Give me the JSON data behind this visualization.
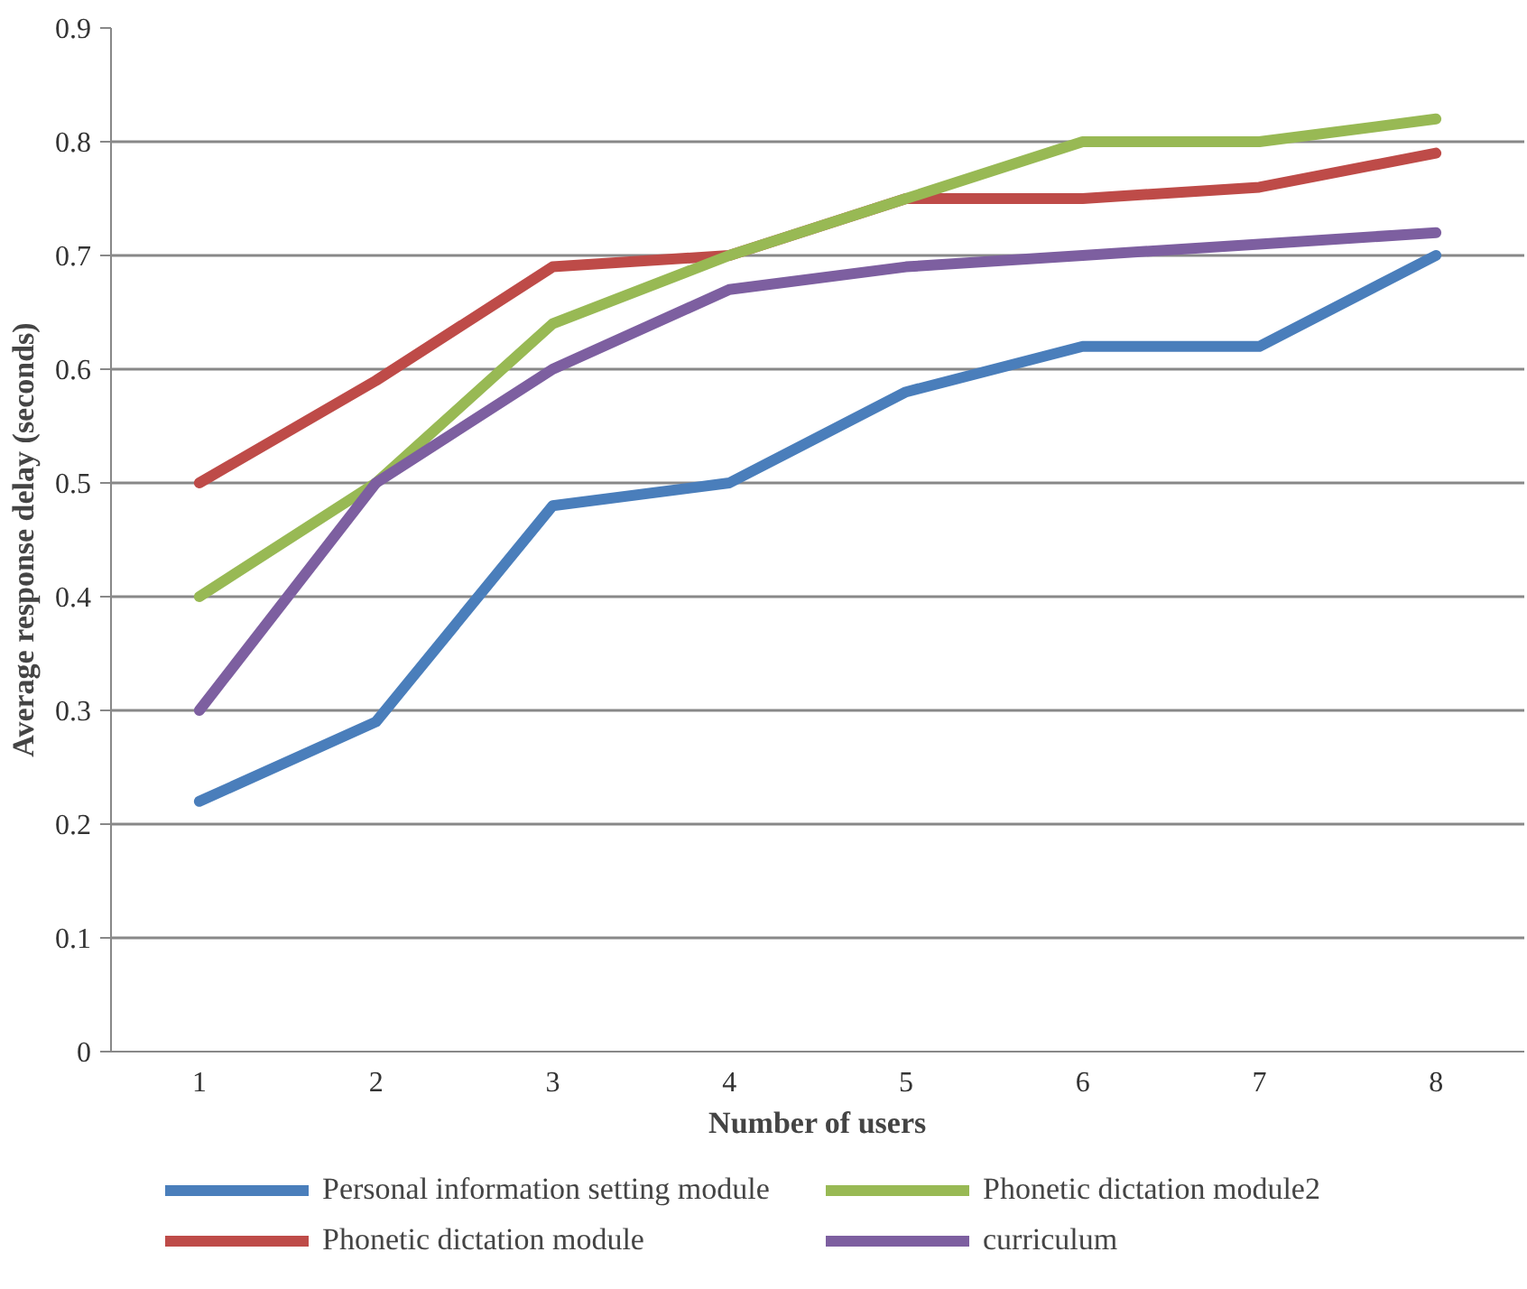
{
  "chart_data": {
    "type": "line",
    "xlabel": "Number of users",
    "ylabel": "Average response delay (seconds)",
    "categories": [
      "1",
      "2",
      "3",
      "4",
      "5",
      "6",
      "7",
      "8"
    ],
    "series": [
      {
        "name": "Personal information setting module",
        "color": "#4a7ebb",
        "values": [
          0.22,
          0.29,
          0.48,
          0.5,
          0.58,
          0.62,
          0.62,
          0.7
        ]
      },
      {
        "name": "Phonetic dictation module",
        "color": "#be4b48",
        "values": [
          0.5,
          0.59,
          0.69,
          0.7,
          0.75,
          0.75,
          0.76,
          0.79
        ]
      },
      {
        "name": "Phonetic dictation module2",
        "color": "#98b954",
        "values": [
          0.4,
          0.5,
          0.64,
          0.7,
          0.75,
          0.8,
          0.8,
          0.82
        ]
      },
      {
        "name": "curriculum",
        "color": "#7d5fa0",
        "values": [
          0.3,
          0.5,
          0.6,
          0.67,
          0.69,
          0.7,
          0.71,
          0.72
        ]
      }
    ],
    "ylim": [
      0,
      0.9
    ],
    "yticks": [
      0,
      0.1,
      0.2,
      0.3,
      0.4,
      0.5,
      0.6,
      0.7,
      0.8,
      0.9
    ],
    "grid": "y",
    "legend": "bottom",
    "marker": "none",
    "line_style": "solid"
  }
}
